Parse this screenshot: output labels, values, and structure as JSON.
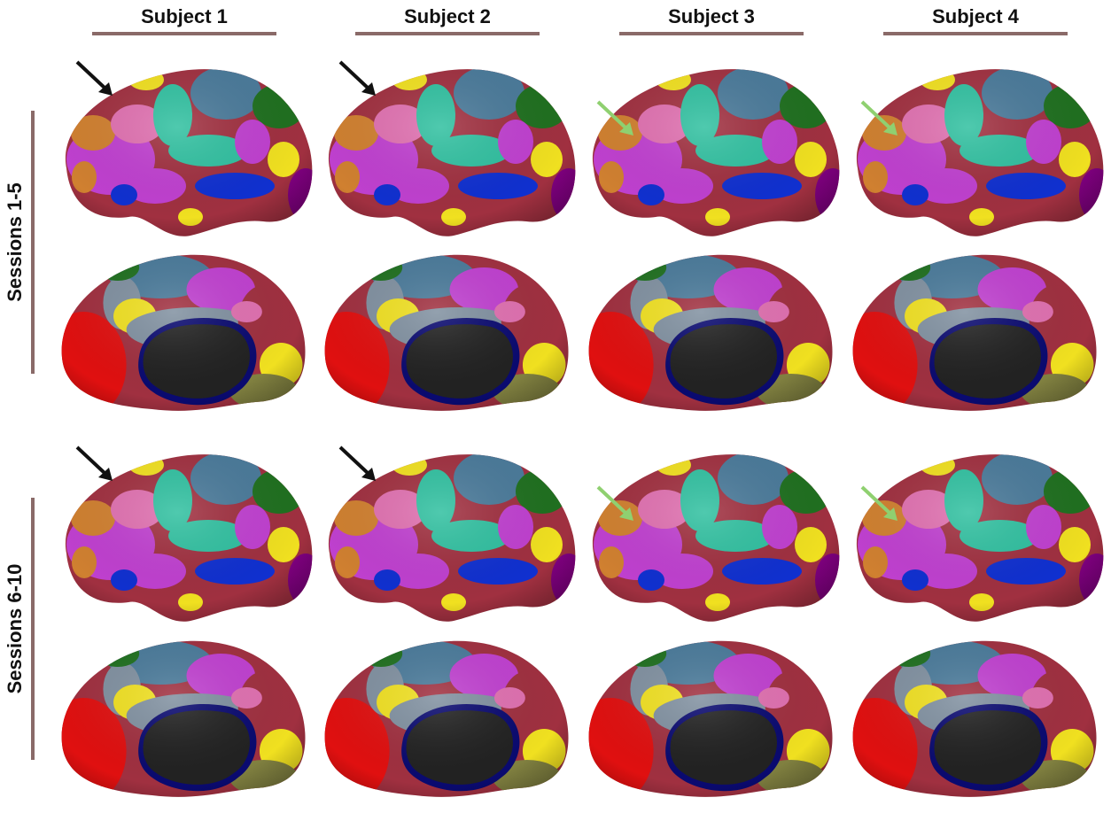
{
  "columns": [
    "Subject 1",
    "Subject 2",
    "Subject 3",
    "Subject 4"
  ],
  "rows": [
    "Sessions 1-5",
    "Sessions 6-10"
  ]
}
